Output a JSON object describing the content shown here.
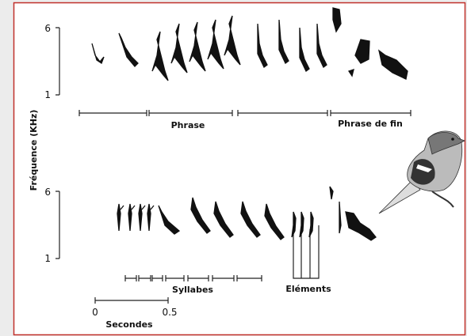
{
  "y_axis_label": "Fréquence (KHz)",
  "top_axis": {
    "ticks": [
      "6",
      "1"
    ]
  },
  "bottom_axis": {
    "ticks": [
      "6",
      "1"
    ]
  },
  "phrase_labels": [
    "Phrase",
    "Phrase de fin"
  ],
  "syllables_label": "Syllabes",
  "elements_label": "Eléments",
  "time_scale": {
    "ticks": [
      "0",
      "0.5"
    ],
    "label": "Secondes"
  }
}
